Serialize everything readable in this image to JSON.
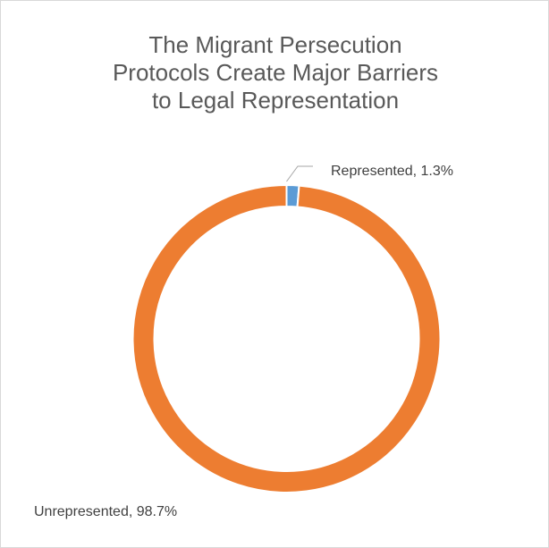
{
  "chart_data": {
    "type": "pie",
    "style": "donut",
    "title_lines": [
      "The Migrant Persecution",
      "Protocols Create Major Barriers",
      "to Legal Representation"
    ],
    "slices": [
      {
        "category": "Represented",
        "value": 1.3,
        "label": "Represented, 1.3%",
        "color": "#5b9bd5"
      },
      {
        "category": "Unrepresented",
        "value": 98.7,
        "label": "Unrepresented, 98.7%",
        "color": "#ed7d31"
      }
    ],
    "legend": "none"
  }
}
